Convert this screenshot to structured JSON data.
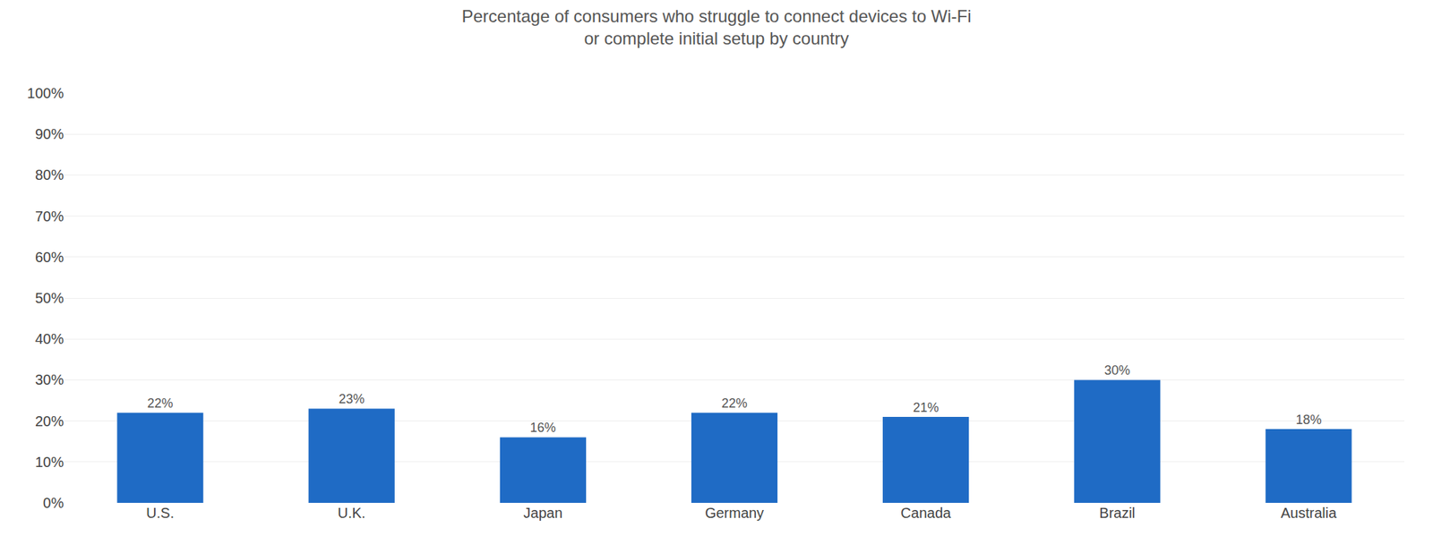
{
  "chart_data": {
    "type": "bar",
    "title": "Percentage of consumers who struggle to connect devices to Wi-Fi\nor complete initial setup by country",
    "categories": [
      "U.S.",
      "U.K.",
      "Japan",
      "Germany",
      "Canada",
      "Brazil",
      "Australia"
    ],
    "values": [
      22,
      23,
      16,
      22,
      21,
      30,
      18
    ],
    "value_labels": [
      "22%",
      "23%",
      "16%",
      "22%",
      "21%",
      "30%",
      "18%"
    ],
    "data_labels": true,
    "color": "#1F6BC5",
    "ylim": [
      0,
      100
    ],
    "yticks": [
      {
        "value": 0,
        "label": "0%"
      },
      {
        "value": 10,
        "label": "10%"
      },
      {
        "value": 20,
        "label": "20%"
      },
      {
        "value": 30,
        "label": "30%"
      },
      {
        "value": 40,
        "label": "40%"
      },
      {
        "value": 50,
        "label": "50%"
      },
      {
        "value": 60,
        "label": "60%"
      },
      {
        "value": 70,
        "label": "70%"
      },
      {
        "value": 80,
        "label": "80%"
      },
      {
        "value": 90,
        "label": "90%"
      },
      {
        "value": 100,
        "label": "100%"
      }
    ],
    "grid": true
  }
}
